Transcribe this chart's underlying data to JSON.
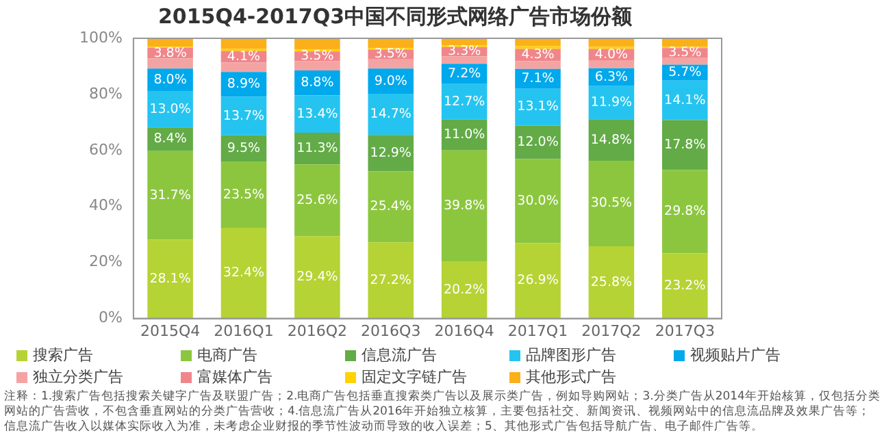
{
  "chart_data": {
    "type": "bar",
    "stacked": true,
    "title": "2015Q4-2017Q3中国不同形式网络广告市场份额",
    "categories": [
      "2015Q4",
      "2016Q1",
      "2016Q2",
      "2016Q3",
      "2016Q4",
      "2017Q1",
      "2017Q2",
      "2017Q3"
    ],
    "ylim": [
      0,
      100
    ],
    "yticks": [
      {
        "value": 0,
        "label": "0%"
      },
      {
        "value": 20,
        "label": "20%"
      },
      {
        "value": 40,
        "label": "40%"
      },
      {
        "value": 60,
        "label": "60%"
      },
      {
        "value": 80,
        "label": "80%"
      },
      {
        "value": 100,
        "label": "100%"
      }
    ],
    "grid": false,
    "legend": "bottom",
    "series": [
      {
        "name": "搜索广告",
        "color": "#b5d334",
        "values": [
          28.1,
          32.4,
          29.4,
          27.2,
          20.2,
          26.9,
          25.8,
          23.2
        ],
        "value_labels": [
          "28.1%",
          "32.4%",
          "29.4%",
          "27.2%",
          "20.2%",
          "26.9%",
          "25.8%",
          "23.2%"
        ]
      },
      {
        "name": "电商广告",
        "color": "#8cc63f",
        "values": [
          31.7,
          23.5,
          25.6,
          25.4,
          39.8,
          30.0,
          30.5,
          29.8
        ],
        "value_labels": [
          "31.7%",
          "23.5%",
          "25.6%",
          "25.4%",
          "39.8%",
          "30.0%",
          "30.5%",
          "29.8%"
        ]
      },
      {
        "name": "信息流广告",
        "color": "#62ab46",
        "values": [
          8.4,
          9.5,
          11.3,
          12.9,
          11.0,
          12.0,
          14.8,
          17.8
        ],
        "value_labels": [
          "8.4%",
          "9.5%",
          "11.3%",
          "12.9%",
          "11.0%",
          "12.0%",
          "14.8%",
          "17.8%"
        ]
      },
      {
        "name": "品牌图形广告",
        "color": "#25c4f0",
        "values": [
          13.0,
          13.7,
          13.4,
          14.7,
          12.7,
          13.1,
          11.9,
          14.1
        ],
        "value_labels": [
          "13.0%",
          "13.7%",
          "13.4%",
          "14.7%",
          "12.7%",
          "13.1%",
          "11.9%",
          "14.1%"
        ]
      },
      {
        "name": "视频贴片广告",
        "color": "#00a8ec",
        "values": [
          8.0,
          8.9,
          8.8,
          9.0,
          7.2,
          7.1,
          6.3,
          5.7
        ],
        "value_labels": [
          "8.0%",
          "8.9%",
          "8.8%",
          "9.0%",
          "7.2%",
          "7.1%",
          "6.3%",
          "5.7%"
        ]
      },
      {
        "name": "独立分类广告",
        "color": "#f4a3a3",
        "values": [
          3.6,
          3.4,
          3.3,
          3.3,
          2.7,
          2.8,
          2.9,
          2.4
        ]
      },
      {
        "name": "富媒体广告",
        "color": "#f0868a",
        "values": [
          3.8,
          4.1,
          3.5,
          3.5,
          3.3,
          4.3,
          4.0,
          3.5
        ],
        "value_labels": [
          "3.8%",
          "4.1%",
          "3.5%",
          "3.5%",
          "3.3%",
          "4.3%",
          "4.0%",
          "3.5%"
        ]
      },
      {
        "name": "固定文字链广告",
        "color": "#ffd200",
        "values": [
          0.4,
          0.8,
          0.7,
          0.5,
          0.6,
          1.0,
          0.8,
          0.5
        ]
      },
      {
        "name": "其他形式广告",
        "color": "#fbb01a",
        "values": [
          3.0,
          3.7,
          4.0,
          3.5,
          2.5,
          2.8,
          3.0,
          3.0
        ]
      }
    ],
    "annotations": [
      "注释：1.搜索广告包括搜索关键字广告及联盟广告；2.电商广告包括垂直搜索类广告以及展示类广告，例如导购网站；3.分类广告从2014年开始核算，仅包括分类网站的广告营收，不包含垂直网站的分类广告营收；4.信息流广告从2016年开始独立核算，主要包括社交、新闻资讯、视频网站中的信息流品牌及效果广告等；信息流广告收入以媒体实际收入为准，未考虑企业财报的季节性波动而导致的收入误差；5、其他形式广告包括导航广告、电子邮件广告等。"
    ]
  }
}
